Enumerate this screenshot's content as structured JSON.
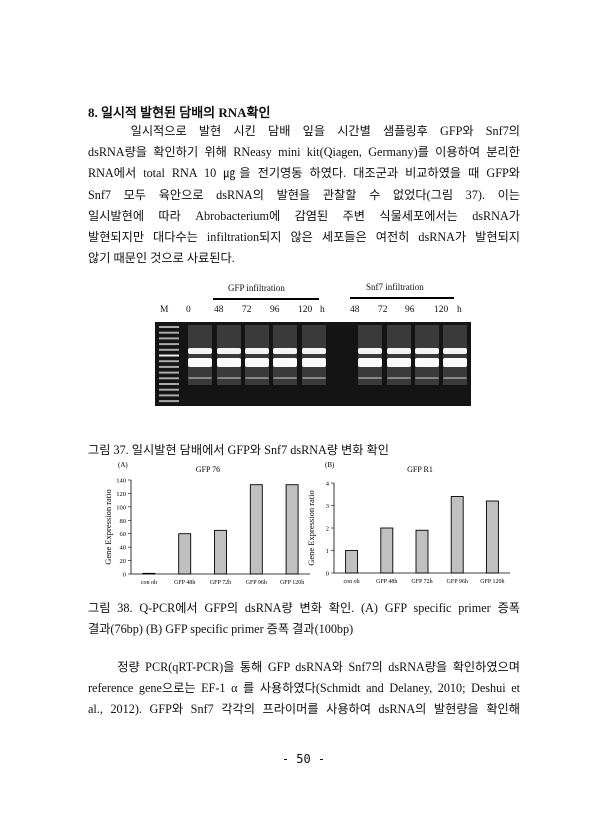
{
  "section": {
    "heading": "8. 일시적 발현된 담배의 RNA확인"
  },
  "paragraph1": [
    "　　일시적으로 발현 시킨 담배 잎을 시간별 샘플링후 GFP와 Snf7의",
    "dsRNA량을 확인하기 위해 RNeasy mini kit(Qiagen, Germany)를 이용하여 분리한",
    "RNA에서 total RNA 10 ㎍을 전기영동 하였다. 대조군과 비교하였을 때 GFP와",
    "Snf7 모두 육안으로 dsRNA의 발현을 관찰할 수 없었다(그림 37). 이는",
    "일시발현에 따라 Abrobacterium에 감염된 주변 식물세포에서는 dsRNA가",
    "발현되지만 대다수는 infiltration되지 않은 세포들은 여전히 dsRNA가 발현되지",
    "않기 때문인 것으로 사료된다."
  ],
  "figure37": {
    "group_gfp": "GFP infiltration",
    "group_snf7": "Snf7 infiltration",
    "lanes": [
      "M",
      "0",
      "48",
      "72",
      "96",
      "120",
      "h",
      "48",
      "72",
      "96",
      "120",
      "h"
    ],
    "caption": "그림 37. 일시발현 담배에서 GFP와 Snf7 dsRNA량 변화 확인"
  },
  "chart_data": [
    {
      "type": "bar",
      "panel": "(A)",
      "title": "GFP 76",
      "ylabel": "Gene Expression ratio",
      "categories": [
        "con oh",
        "GFP 48h",
        "GFP 72h",
        "GFP 96h",
        "GFP 120h"
      ],
      "values": [
        1,
        60,
        65,
        133,
        133
      ],
      "ylim": [
        0,
        140
      ],
      "yticks": [
        0,
        20,
        40,
        60,
        80,
        100,
        120,
        140
      ],
      "bar_color": "#c0c0c0",
      "grid": false
    },
    {
      "type": "bar",
      "panel": "(B)",
      "title": "GFP R1",
      "ylabel": "Gene Expression ratio",
      "categories": [
        "con oh",
        "GFP 48h",
        "GFP 72h",
        "GFP 96h",
        "GFP 120h"
      ],
      "values": [
        1.0,
        2.0,
        1.9,
        3.4,
        3.2
      ],
      "ylim": [
        0,
        4
      ],
      "yticks": [
        0,
        1,
        2,
        3,
        4
      ],
      "bar_color": "#c0c0c0",
      "grid": false
    }
  ],
  "figure38": {
    "caption": [
      "그림 38. Q-PCR에서 GFP의 dsRNA량 변화 확인. (A) GFP specific primer 증폭",
      "결과(76bp) (B) GFP specific primer 증폭 결과(100bp)"
    ]
  },
  "paragraph2": [
    "　　정량 PCR(qRT-PCR)을 통해 GFP dsRNA와 Snf7의 dsRNA량을 확인하였으며",
    "reference gene으로는 EF-1 α 를 사용하였다(Schmidt and Delaney, 2010; Deshui et",
    "al., 2012). GFP와 Snf7 각각의 프라이머를 사용하여 dsRNA의 발현량을 확인해"
  ],
  "page_number": "- 50 -"
}
